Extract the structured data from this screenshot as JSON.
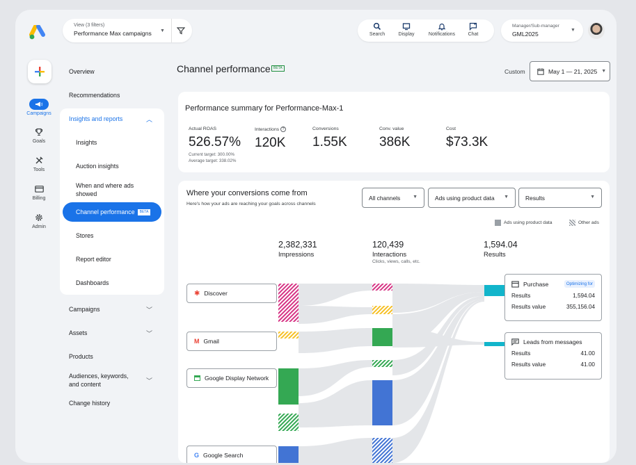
{
  "topbar": {
    "view_sub": "View (3 filters)",
    "view_main": "Performance Max campaigns",
    "nav": [
      {
        "label": "Search",
        "icon": "search-icon"
      },
      {
        "label": "Display",
        "icon": "display-icon"
      },
      {
        "label": "Notifications",
        "icon": "bell-icon"
      },
      {
        "label": "Chat",
        "icon": "chat-icon"
      }
    ],
    "manager_sub": "Manager/Sub-manager",
    "manager_main": "GML2025"
  },
  "rail": [
    {
      "label": "Campaigns",
      "icon": "megaphone-icon"
    },
    {
      "label": "Goals",
      "icon": "trophy-icon"
    },
    {
      "label": "Tools",
      "icon": "tools-icon"
    },
    {
      "label": "Billing",
      "icon": "card-icon"
    },
    {
      "label": "Admin",
      "icon": "gear-icon"
    }
  ],
  "sidenav": {
    "overview": "Overview",
    "recommendations": "Recommendations",
    "insights": "Insights and reports",
    "sub": [
      "Insights",
      "Auction insights",
      "When and where ads showed",
      "Channel performance",
      "Stores",
      "Report editor",
      "Dashboards"
    ],
    "beta": "BETA",
    "campaigns": "Campaigns",
    "assets": "Assets",
    "products": "Products",
    "audiences": "Audiences, keywords, and content",
    "change_history": "Change history"
  },
  "header": {
    "title": "Channel performance",
    "beta": "BETA",
    "custom": "Custom",
    "date": "May 1 — 21, 2025"
  },
  "summary": {
    "title": "Performance summary for Performance-Max-1",
    "metrics": [
      {
        "label": "Actual ROAS",
        "value": "526.57%",
        "sub1": "Current target: 300.00%",
        "sub2": "Average target: 338.02%"
      },
      {
        "label": "Interactions",
        "value": "120K"
      },
      {
        "label": "Conversions",
        "value": "1.55K"
      },
      {
        "label": "Conv. value",
        "value": "386K"
      },
      {
        "label": "Cost",
        "value": "$73.3K"
      }
    ]
  },
  "conversions": {
    "title": "Where your conversions come from",
    "subtitle": "Here's how your ads are reaching your goals across channels",
    "filters": [
      "All channels",
      "Ads using product data",
      "Results"
    ],
    "legend": [
      "Ads using product data",
      "Other ads"
    ],
    "columns": [
      {
        "num": "2,382,331",
        "name": "Impressions",
        "sub": ""
      },
      {
        "num": "120,439",
        "name": "Interactions",
        "sub": "Clicks, views, calls, etc."
      },
      {
        "num": "1,594.04",
        "name": "Results",
        "sub": ""
      }
    ],
    "channels": [
      "Discover",
      "Gmail",
      "Google Display Network",
      "Google Search"
    ],
    "outcomes": [
      {
        "title": "Purchase",
        "badge": "Optimizing for",
        "rows": [
          [
            "Results",
            "1,594.04"
          ],
          [
            "Results value",
            "355,156.04"
          ]
        ]
      },
      {
        "title": "Leads from messages",
        "badge": "",
        "rows": [
          [
            "Results",
            "41.00"
          ],
          [
            "Results value",
            "41.00"
          ]
        ]
      }
    ]
  },
  "colors": {
    "accent": "#1a73e8",
    "discover": "#d63384",
    "gmail": "#f6c026",
    "display": "#34a853",
    "search": "#4274d4",
    "result": "#12b5cb"
  }
}
